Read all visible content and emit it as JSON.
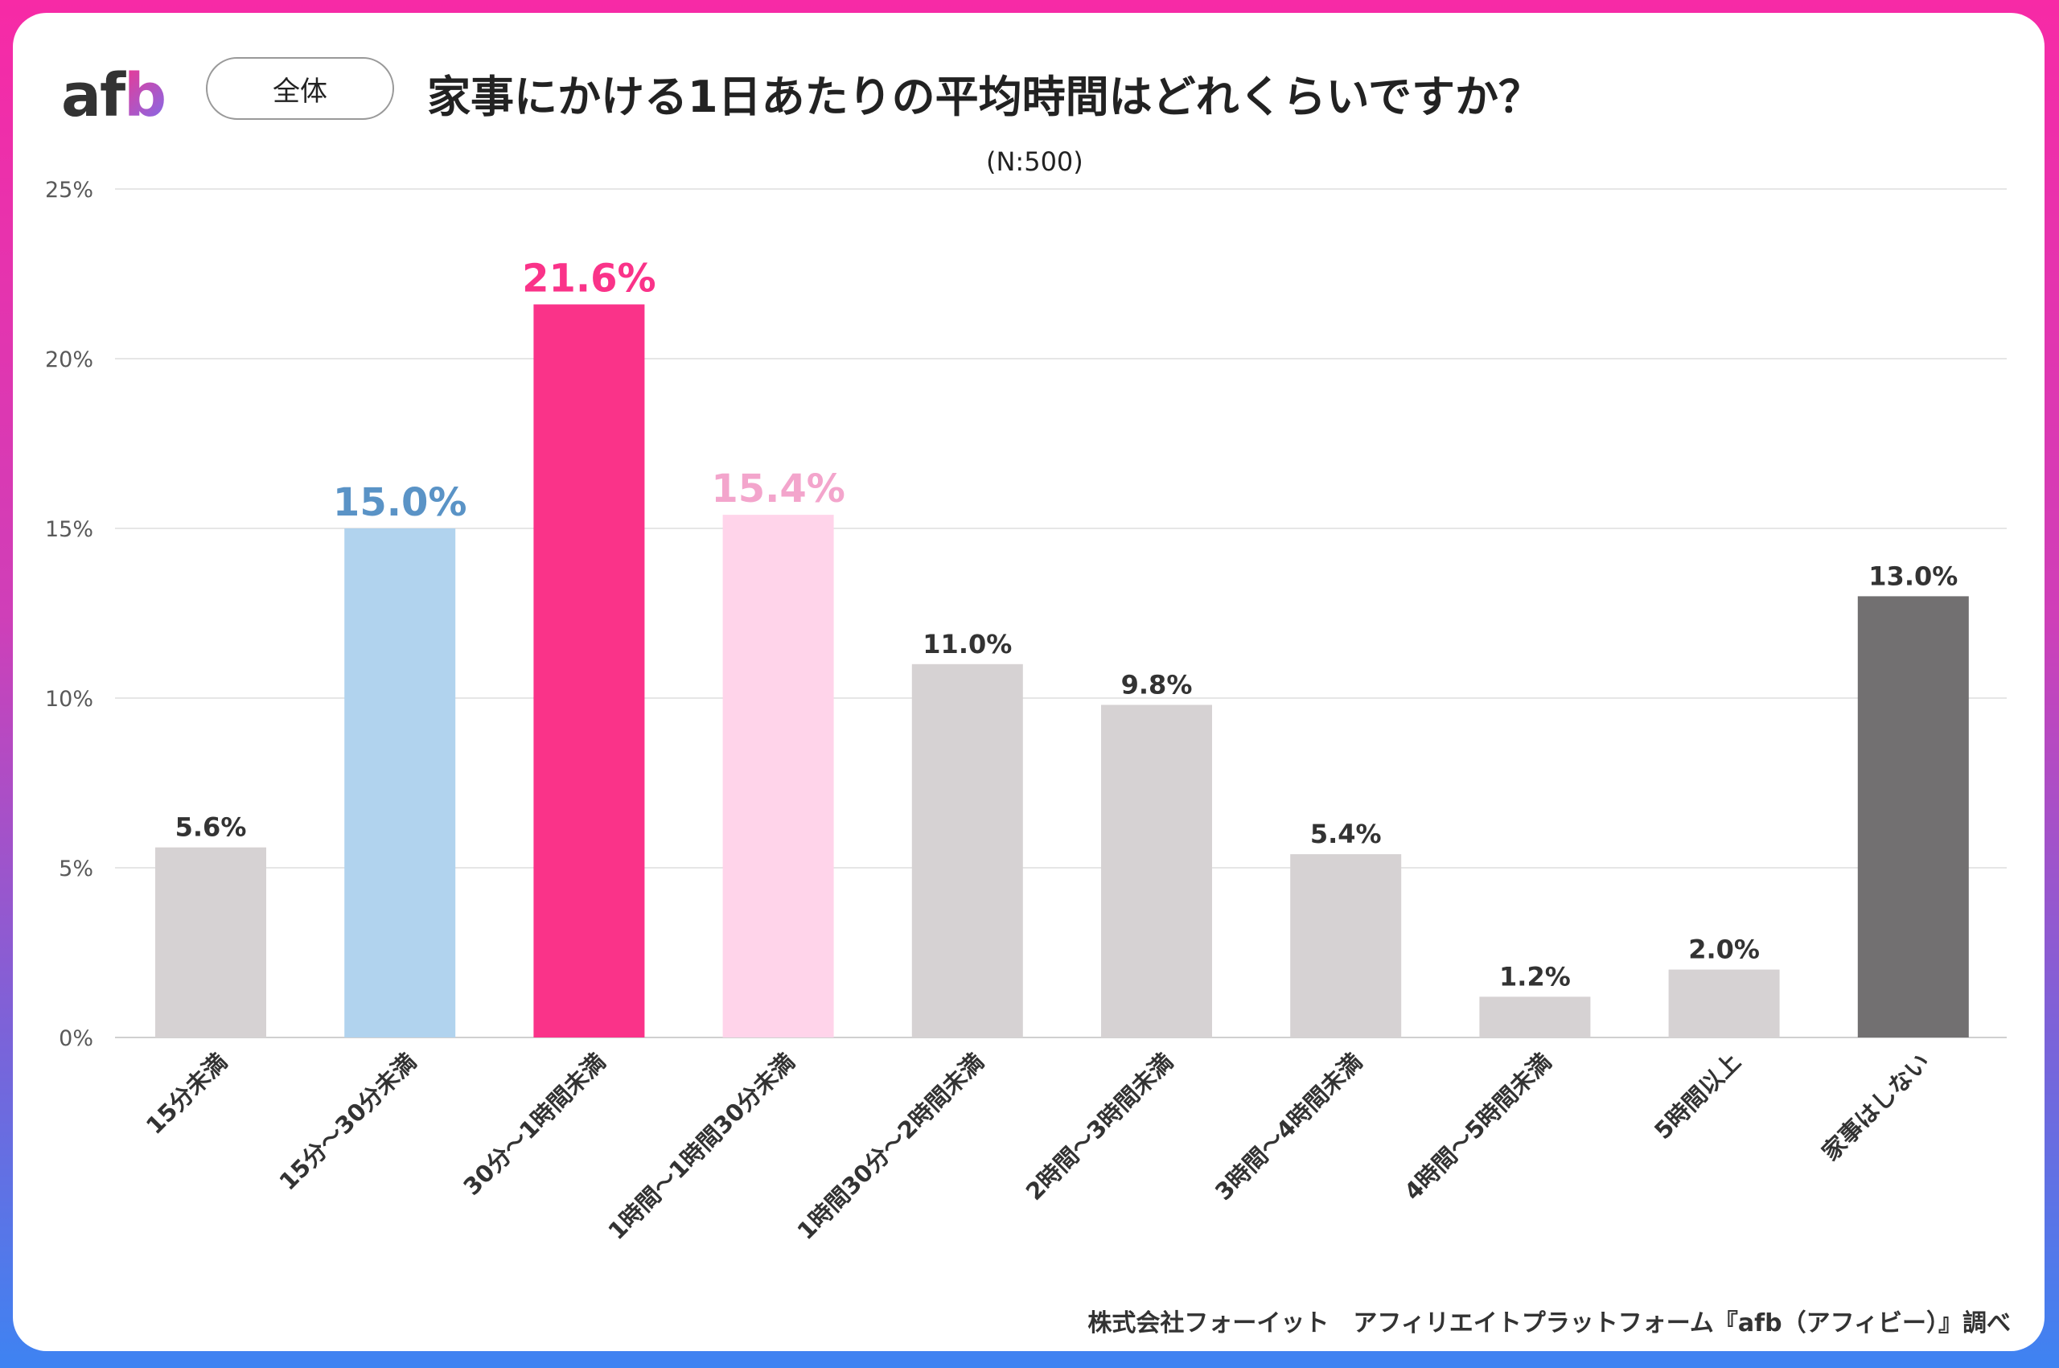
{
  "logo": {
    "text_a": "a",
    "text_f": "f",
    "text_b": "b"
  },
  "segment_pill": "全体",
  "title": "家事にかける1日あたりの平均時間はどれくらいですか？",
  "sample_note": "(N:500)",
  "credit": "株式会社フォーイット　アフィリエイトプラットフォーム『afb（アフィビー）』調べ",
  "colors": {
    "gray": "#d6d2d3",
    "blue": "#b1d3ee",
    "blue_label": "#5a93c6",
    "pink": "#fa3389",
    "light_pink": "#ffd4ea",
    "light_pink_label": "#f3a5cc",
    "dark_gray": "#727071",
    "label_dark": "#333333",
    "grid": "#e6e6e6",
    "axis_text": "#595959"
  },
  "chart_data": {
    "type": "bar",
    "categories": [
      "15分未満",
      "15分～30分未満",
      "30分～1時間未満",
      "1時間～1時間30分未満",
      "1時間30分～2時間未満",
      "2時間～3時間未満",
      "3時間～4時間未満",
      "4時間～5時間未満",
      "5時間以上",
      "家事はしない"
    ],
    "values": [
      5.6,
      15.0,
      21.6,
      15.4,
      11.0,
      9.8,
      5.4,
      1.2,
      2.0,
      13.0
    ],
    "value_labels": [
      "5.6%",
      "15.0%",
      "21.6%",
      "15.4%",
      "11.0%",
      "9.8%",
      "5.4%",
      "1.2%",
      "2.0%",
      "13.0%"
    ],
    "bar_colors": [
      "gray",
      "blue",
      "pink",
      "light_pink",
      "gray",
      "gray",
      "gray",
      "gray",
      "gray",
      "dark_gray"
    ],
    "label_colors": [
      "label_dark",
      "blue_label",
      "pink",
      "light_pink_label",
      "label_dark",
      "label_dark",
      "label_dark",
      "label_dark",
      "label_dark",
      "label_dark"
    ],
    "highlighted": [
      false,
      true,
      true,
      true,
      false,
      false,
      false,
      false,
      false,
      false
    ],
    "y_ticks": [
      0,
      5,
      10,
      15,
      20,
      25
    ],
    "y_tick_labels": [
      "0%",
      "5%",
      "10%",
      "15%",
      "20%",
      "25%"
    ],
    "ylim": [
      0,
      25
    ],
    "grid": true,
    "legend": "none"
  }
}
